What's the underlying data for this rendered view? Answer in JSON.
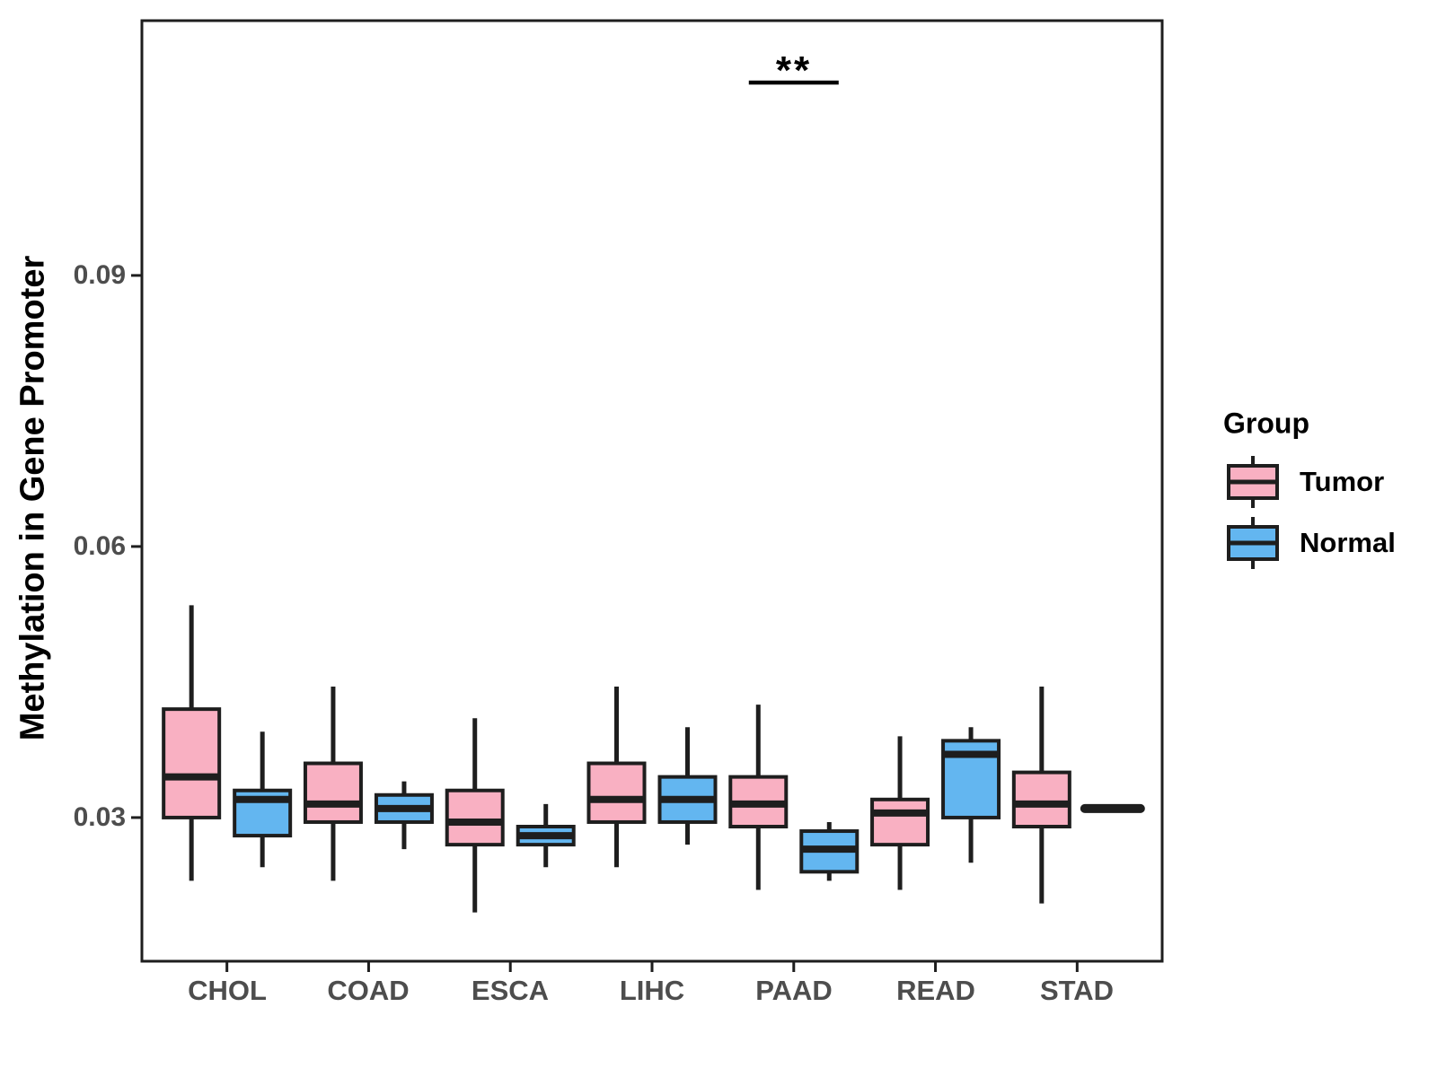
{
  "chart_data": {
    "type": "boxplot",
    "title": "",
    "xlabel": "",
    "ylabel": "Methylation in Gene Promoter",
    "grid": "off",
    "background": "#ffffff",
    "categories": [
      "CHOL",
      "COAD",
      "ESCA",
      "LIHC",
      "PAAD",
      "READ",
      "STAD"
    ],
    "y_ticks": [
      "0.03",
      "0.06",
      "0.09"
    ],
    "y_tick_values": [
      0.03,
      0.06,
      0.09
    ],
    "y_range": [
      0.0141,
      0.1182
    ],
    "legend": {
      "title": "Group",
      "position": "right"
    },
    "groups": [
      {
        "name": "Tumor",
        "fill": "#F9B0C2"
      },
      {
        "name": "Normal",
        "fill": "#63B6F0"
      }
    ],
    "series": [
      {
        "name": "Tumor",
        "boxes": [
          {
            "category": "CHOL",
            "low": 0.023,
            "q1": 0.03,
            "median": 0.0345,
            "q3": 0.042,
            "high": 0.0535
          },
          {
            "category": "COAD",
            "low": 0.023,
            "q1": 0.0295,
            "median": 0.0315,
            "q3": 0.036,
            "high": 0.0445
          },
          {
            "category": "ESCA",
            "low": 0.0195,
            "q1": 0.027,
            "median": 0.0295,
            "q3": 0.033,
            "high": 0.041
          },
          {
            "category": "LIHC",
            "low": 0.0245,
            "q1": 0.0295,
            "median": 0.032,
            "q3": 0.036,
            "high": 0.0445
          },
          {
            "category": "PAAD",
            "low": 0.022,
            "q1": 0.029,
            "median": 0.0315,
            "q3": 0.0345,
            "high": 0.0425
          },
          {
            "category": "READ",
            "low": 0.022,
            "q1": 0.027,
            "median": 0.0305,
            "q3": 0.032,
            "high": 0.039
          },
          {
            "category": "STAD",
            "low": 0.0205,
            "q1": 0.029,
            "median": 0.0315,
            "q3": 0.035,
            "high": 0.0445
          }
        ]
      },
      {
        "name": "Normal",
        "boxes": [
          {
            "category": "CHOL",
            "low": 0.0245,
            "q1": 0.028,
            "median": 0.032,
            "q3": 0.033,
            "high": 0.0395
          },
          {
            "category": "COAD",
            "low": 0.0265,
            "q1": 0.0295,
            "median": 0.031,
            "q3": 0.0325,
            "high": 0.034
          },
          {
            "category": "ESCA",
            "low": 0.0245,
            "q1": 0.027,
            "median": 0.028,
            "q3": 0.029,
            "high": 0.0315
          },
          {
            "category": "LIHC",
            "low": 0.027,
            "q1": 0.0295,
            "median": 0.032,
            "q3": 0.0345,
            "high": 0.04
          },
          {
            "category": "PAAD",
            "low": 0.023,
            "q1": 0.024,
            "median": 0.0265,
            "q3": 0.0285,
            "high": 0.0295
          },
          {
            "category": "READ",
            "low": 0.025,
            "q1": 0.03,
            "median": 0.037,
            "q3": 0.0385,
            "high": 0.04
          },
          {
            "category": "STAD",
            "median": 0.031,
            "degenerate": true
          }
        ]
      }
    ],
    "annotations": [
      {
        "type": "significance",
        "category": "PAAD",
        "label": "**"
      }
    ]
  },
  "colors": {
    "tumor_fill": "#F9B0C2",
    "normal_fill": "#63B6F0",
    "line": "#1E1E1E",
    "axis_text": "#4D4D4D",
    "significance": "#000000"
  }
}
